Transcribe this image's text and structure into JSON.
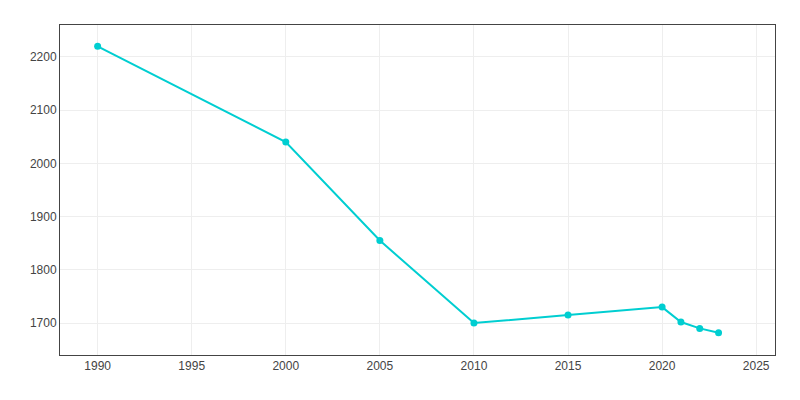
{
  "chart_data": {
    "type": "line",
    "x": [
      1990,
      2000,
      2005,
      2010,
      2015,
      2020,
      2021,
      2022,
      2023
    ],
    "values": [
      2220,
      2040,
      1855,
      1700,
      1715,
      1730,
      1702,
      1690,
      1682
    ],
    "color": "#00CED1",
    "marker": "circle",
    "xlim": [
      1988,
      2026
    ],
    "ylim": [
      1640,
      2260
    ],
    "xticks": [
      1990,
      1995,
      2000,
      2005,
      2010,
      2015,
      2020,
      2025
    ],
    "yticks": [
      1700,
      1800,
      1900,
      2000,
      2100,
      2200
    ],
    "grid": true
  }
}
